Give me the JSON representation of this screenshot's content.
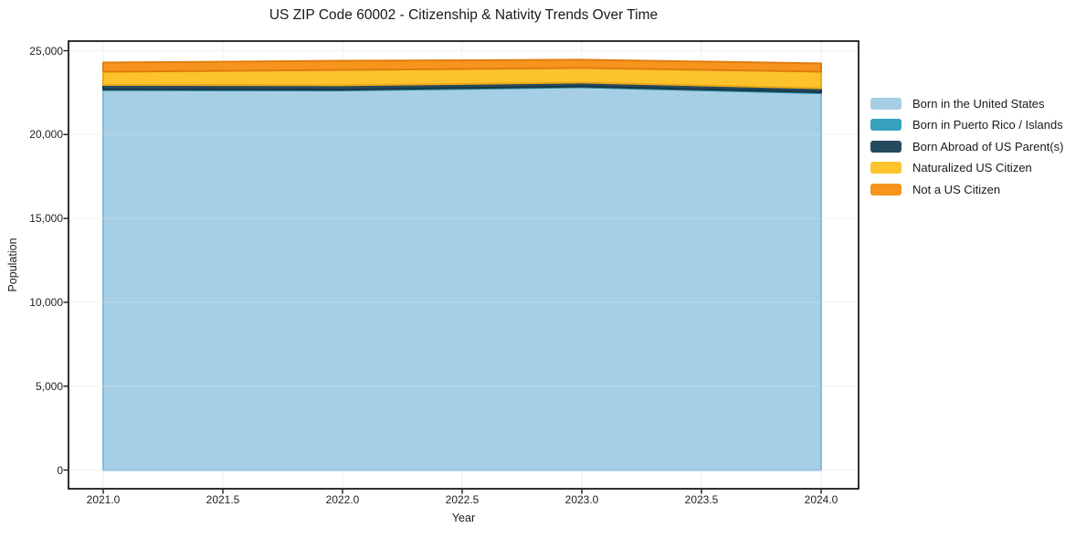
{
  "chart_data": {
    "type": "area",
    "stacked": true,
    "title": "US ZIP Code 60002 - Citizenship & Nativity Trends Over Time",
    "xlabel": "Year",
    "ylabel": "Population",
    "x": [
      2021,
      2022,
      2023,
      2024
    ],
    "series": [
      {
        "name": "Born in the United States",
        "color": "#A6CFE5",
        "edge_color": "#84BAD7",
        "values": [
          22650,
          22630,
          22820,
          22470
        ]
      },
      {
        "name": "Born in Puerto Rico / Islands",
        "color": "#35A1BC",
        "edge_color": "#2A88A1",
        "values": [
          50,
          50,
          50,
          50
        ]
      },
      {
        "name": "Born Abroad of US Parent(s)",
        "color": "#254B5F",
        "edge_color": "#1A3847",
        "values": [
          260,
          260,
          230,
          240
        ]
      },
      {
        "name": "Naturalized US Citizen",
        "color": "#FCC32D",
        "edge_color": "#EDA81A",
        "values": [
          785,
          915,
          870,
          990
        ]
      },
      {
        "name": "Not a US Citizen",
        "color": "#F6941E",
        "edge_color": "#E07D0F",
        "values": [
          545,
          545,
          490,
          495
        ]
      }
    ],
    "xticks": {
      "values": [
        2021.0,
        2021.5,
        2022.0,
        2022.5,
        2023.0,
        2023.5,
        2024.0
      ],
      "labels": [
        "2021.0",
        "2021.5",
        "2022.0",
        "2022.5",
        "2023.0",
        "2023.5",
        "2024.0"
      ]
    },
    "yticks": {
      "values": [
        0,
        5000,
        10000,
        15000,
        20000,
        25000
      ],
      "labels": [
        "0",
        "5,000",
        "10,000",
        "15,000",
        "20,000",
        "25,000"
      ]
    },
    "ylim": [
      0,
      25000
    ],
    "grid": true,
    "legend_position": "center right, outside plot",
    "colors": {
      "grid": "#ECECEC",
      "spine": "#1A1A1A",
      "background": "#FFFFFF"
    }
  }
}
